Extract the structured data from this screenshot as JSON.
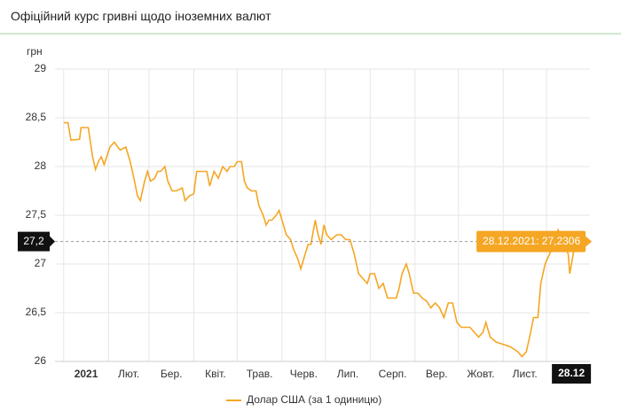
{
  "header": {
    "title": "Офіційний курс гривні щодо іноземних валют"
  },
  "chart_data": {
    "type": "line",
    "y_label": "грн",
    "x": [
      1,
      4,
      6,
      12,
      13,
      18,
      21,
      23,
      25,
      27,
      29,
      33,
      36,
      40,
      44,
      47,
      50,
      52,
      54,
      57,
      59,
      61,
      64,
      66,
      68,
      71,
      73,
      76,
      79,
      83,
      85,
      88,
      91,
      93,
      96,
      100,
      102,
      105,
      108,
      111,
      114,
      116,
      119,
      121,
      124,
      126,
      128,
      131,
      134,
      136,
      139,
      141,
      143,
      145,
      148,
      150,
      152,
      155,
      158,
      160,
      163,
      165,
      168,
      170,
      172,
      175,
      177,
      179,
      181,
      183,
      186,
      190,
      193,
      196,
      199,
      202,
      205,
      208,
      211,
      213,
      216,
      219,
      222,
      225,
      228,
      231,
      233,
      235,
      238,
      240,
      243,
      246,
      249,
      252,
      255,
      258,
      261,
      264,
      267,
      270,
      273,
      276,
      279,
      282,
      285,
      288,
      291,
      293,
      296,
      300,
      310,
      315,
      318,
      321,
      324,
      326,
      329,
      331,
      334,
      337,
      340,
      343,
      346,
      350,
      351,
      354,
      357,
      362
    ],
    "series": [
      {
        "name": "Долар США (за 1 одиницю)",
        "color": "#f5a623",
        "values": [
          28.45,
          28.45,
          28.27,
          28.28,
          28.4,
          28.4,
          28.1,
          27.97,
          28.05,
          28.1,
          28.02,
          28.2,
          28.25,
          28.17,
          28.2,
          28.05,
          27.85,
          27.7,
          27.65,
          27.85,
          27.95,
          27.85,
          27.88,
          27.95,
          27.95,
          28.0,
          27.85,
          27.75,
          27.75,
          27.78,
          27.65,
          27.7,
          27.72,
          27.95,
          27.95,
          27.95,
          27.8,
          27.95,
          27.88,
          28.0,
          27.95,
          28.0,
          28.0,
          28.05,
          28.05,
          27.85,
          27.78,
          27.75,
          27.75,
          27.6,
          27.5,
          27.4,
          27.45,
          27.45,
          27.5,
          27.55,
          27.45,
          27.3,
          27.25,
          27.15,
          27.05,
          26.95,
          27.1,
          27.2,
          27.2,
          27.45,
          27.3,
          27.2,
          27.4,
          27.3,
          27.25,
          27.3,
          27.3,
          27.25,
          27.25,
          27.1,
          26.9,
          26.85,
          26.8,
          26.9,
          26.9,
          26.75,
          26.8,
          26.65,
          26.65,
          26.65,
          26.75,
          26.9,
          27.0,
          26.9,
          26.7,
          26.7,
          26.65,
          26.62,
          26.55,
          26.6,
          26.55,
          26.45,
          26.6,
          26.6,
          26.4,
          26.35,
          26.35,
          26.35,
          26.3,
          26.25,
          26.3,
          26.4,
          26.25,
          26.2,
          26.15,
          26.1,
          26.05,
          26.1,
          26.3,
          26.45,
          26.45,
          26.8,
          27.0,
          27.1,
          27.2,
          27.35,
          27.25,
          27.1,
          26.9,
          27.15,
          27.2,
          27.2306
        ]
      }
    ],
    "xlim": [
      -5,
      365
    ],
    "xticks": [
      {
        "value": 1,
        "label": "2021"
      },
      {
        "value": 32,
        "label": "Лют."
      },
      {
        "value": 60,
        "label": "Бер."
      },
      {
        "value": 91,
        "label": "Квіт."
      },
      {
        "value": 121,
        "label": "Трав."
      },
      {
        "value": 152,
        "label": "Черв."
      },
      {
        "value": 182,
        "label": "Лип."
      },
      {
        "value": 213,
        "label": "Серп."
      },
      {
        "value": 244,
        "label": "Вер."
      },
      {
        "value": 274,
        "label": "Жовт."
      },
      {
        "value": 305,
        "label": "Лист."
      },
      {
        "value": 335,
        "label": null
      }
    ],
    "ylim": [
      26,
      29
    ],
    "yticks": [
      26,
      {
        "value": 26.5,
        "label": "26,5"
      },
      27,
      {
        "value": 27.5,
        "label": "27,5"
      },
      28,
      {
        "value": 28.5,
        "label": "28,5"
      },
      29
    ],
    "grid": true,
    "crosshair": {
      "x": 362,
      "value": 27.2306,
      "label": "28.12.2021: 27,2306",
      "x_label": "28.12",
      "y_label": "27,2"
    }
  }
}
